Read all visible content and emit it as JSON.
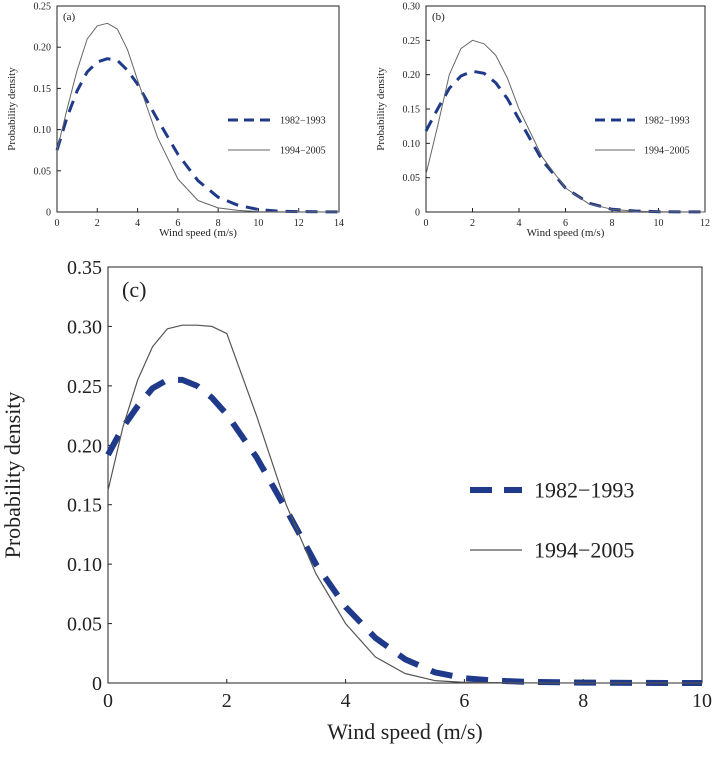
{
  "chart_data": [
    {
      "panel": "a",
      "panel_label": "(a)",
      "type": "line",
      "xlabel": "Wind speed (m/s)",
      "ylabel": "Probability density",
      "xlim": [
        0,
        14
      ],
      "ylim": [
        0,
        0.25
      ],
      "xticks": [
        0,
        2,
        4,
        6,
        8,
        10,
        12,
        14
      ],
      "xtick_labels": [
        "0",
        "2",
        "4",
        "6",
        "8",
        "10",
        "12",
        "14"
      ],
      "yticks": [
        0,
        0.05,
        0.1,
        0.15,
        0.2,
        0.25
      ],
      "ytick_labels": [
        "0",
        "0.05",
        "0.10",
        "0.15",
        "0.20",
        "0.25"
      ],
      "legend_position": "center-right",
      "series": [
        {
          "name": "1982−1993",
          "style": "dashed",
          "color": "#1f3a8a",
          "x": [
            0,
            0.5,
            1,
            1.5,
            2,
            2.5,
            3,
            3.5,
            4,
            5,
            6,
            7,
            8,
            9,
            10,
            11,
            12,
            13,
            14
          ],
          "y": [
            0.075,
            0.115,
            0.147,
            0.17,
            0.182,
            0.186,
            0.184,
            0.172,
            0.155,
            0.112,
            0.07,
            0.038,
            0.018,
            0.008,
            0.003,
            0.001,
            0.0005,
            0.0002,
            0.0001
          ]
        },
        {
          "name": "1994−2005",
          "style": "solid",
          "color": "#666666",
          "x": [
            0,
            0.5,
            1,
            1.5,
            2,
            2.5,
            3,
            3.5,
            4,
            5,
            6,
            7,
            8,
            9,
            10,
            11,
            12,
            14
          ],
          "y": [
            0.075,
            0.125,
            0.172,
            0.21,
            0.226,
            0.229,
            0.222,
            0.197,
            0.16,
            0.09,
            0.04,
            0.014,
            0.005,
            0.002,
            0.0005,
            0.0002,
            0.0001,
            0
          ]
        }
      ]
    },
    {
      "panel": "b",
      "panel_label": "(b)",
      "type": "line",
      "xlabel": "Wind speed (m/s)",
      "ylabel": "Probability density",
      "xlim": [
        0,
        12
      ],
      "ylim": [
        0,
        0.3
      ],
      "xticks": [
        0,
        2,
        4,
        6,
        8,
        10,
        12
      ],
      "xtick_labels": [
        "0",
        "2",
        "4",
        "6",
        "8",
        "10",
        "12"
      ],
      "yticks": [
        0,
        0.05,
        0.1,
        0.15,
        0.2,
        0.25,
        0.3
      ],
      "ytick_labels": [
        "0",
        "0.05",
        "0.10",
        "0.15",
        "0.20",
        "0.25",
        "0.30"
      ],
      "legend_position": "center-right",
      "series": [
        {
          "name": "1982−1993",
          "style": "dashed",
          "color": "#1f3a8a",
          "x": [
            0,
            0.5,
            1,
            1.5,
            2,
            2.5,
            3,
            3.5,
            4,
            5,
            6,
            7,
            8,
            9,
            10,
            11,
            12
          ],
          "y": [
            0.118,
            0.15,
            0.18,
            0.198,
            0.205,
            0.202,
            0.188,
            0.165,
            0.135,
            0.075,
            0.035,
            0.013,
            0.004,
            0.0015,
            0.0005,
            0.0002,
            0.0001
          ]
        },
        {
          "name": "1994−2005",
          "style": "solid",
          "color": "#666666",
          "x": [
            0,
            0.5,
            1,
            1.5,
            2,
            2.5,
            3,
            3.5,
            4,
            5,
            6,
            7,
            8,
            9,
            10,
            11,
            12
          ],
          "y": [
            0.055,
            0.125,
            0.2,
            0.238,
            0.25,
            0.245,
            0.228,
            0.195,
            0.15,
            0.08,
            0.035,
            0.012,
            0.004,
            0.0012,
            0.0004,
            0.0001,
            0
          ]
        }
      ]
    },
    {
      "panel": "c",
      "panel_label": "(c)",
      "type": "line",
      "xlabel": "Wind speed (m/s)",
      "ylabel": "Probability density",
      "xlim": [
        0,
        10
      ],
      "ylim": [
        0,
        0.35
      ],
      "xticks": [
        0,
        2,
        4,
        6,
        8,
        10
      ],
      "xtick_labels": [
        "0",
        "2",
        "4",
        "6",
        "8",
        "10"
      ],
      "yticks": [
        0,
        0.05,
        0.1,
        0.15,
        0.2,
        0.25,
        0.3,
        0.35
      ],
      "ytick_labels": [
        "0",
        "0.05",
        "0.10",
        "0.15",
        "0.20",
        "0.25",
        "0.30",
        "0.35"
      ],
      "legend_position": "center-right",
      "series": [
        {
          "name": "1982−1993",
          "style": "dashed",
          "color": "#1f3a8a",
          "x": [
            0,
            0.25,
            0.5,
            0.75,
            1,
            1.25,
            1.5,
            1.75,
            2,
            2.5,
            3,
            3.5,
            4,
            4.5,
            5,
            5.5,
            6,
            6.5,
            7,
            8,
            9,
            10
          ],
          "y": [
            0.192,
            0.215,
            0.233,
            0.248,
            0.255,
            0.255,
            0.25,
            0.24,
            0.226,
            0.19,
            0.146,
            0.1,
            0.064,
            0.038,
            0.02,
            0.009,
            0.004,
            0.002,
            0.001,
            0.0003,
            0.0001,
            0
          ]
        },
        {
          "name": "1994−2005",
          "style": "solid",
          "color": "#555555",
          "x": [
            0,
            0.25,
            0.5,
            0.75,
            1,
            1.25,
            1.5,
            1.75,
            2,
            2.5,
            3,
            3.5,
            4,
            4.5,
            5,
            5.5,
            6,
            7,
            8,
            10
          ],
          "y": [
            0.162,
            0.215,
            0.255,
            0.283,
            0.298,
            0.301,
            0.301,
            0.3,
            0.294,
            0.225,
            0.15,
            0.092,
            0.05,
            0.022,
            0.008,
            0.002,
            0.0005,
            0.0001,
            0,
            0
          ]
        }
      ]
    }
  ]
}
